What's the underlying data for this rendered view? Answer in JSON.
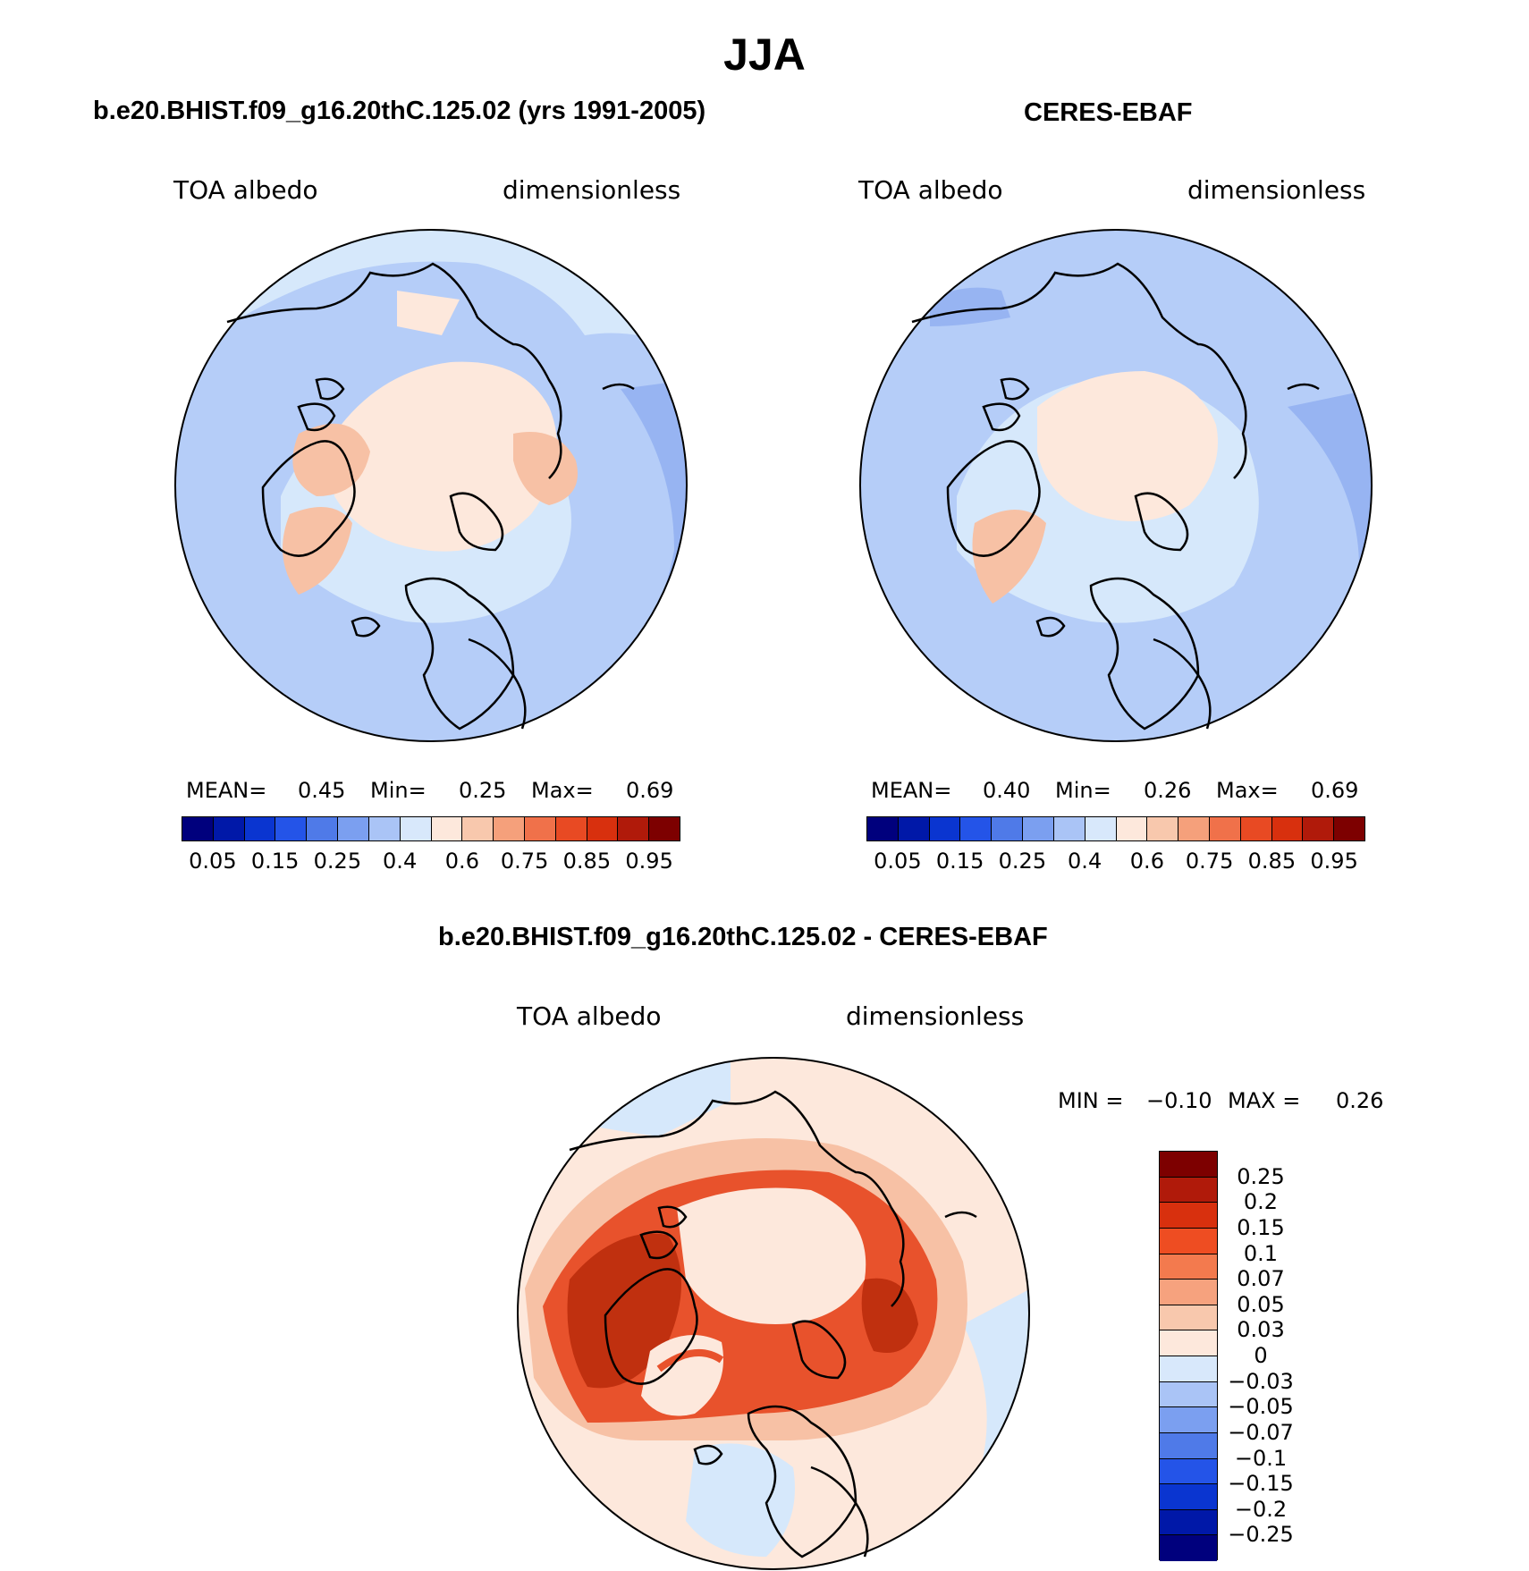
{
  "figure": {
    "title": "JJA",
    "colors": {
      "coast": "#000000",
      "light_blue": "#d6e8fb",
      "mid_blue": "#b5cdf8",
      "blue": "#97b4f2",
      "peach": "#fde8dc",
      "salmon": "#f7c1a5",
      "orange_red": "#e8522c",
      "dark_red": "#c0300f"
    }
  },
  "panels": [
    {
      "id": "model",
      "title": "b.e20.BHIST.f09_g16.20thC.125.02 (yrs 1991-2005)",
      "left_label": "TOA albedo",
      "right_label": "dimensionless",
      "stats": {
        "mean_label": "MEAN=",
        "mean": "0.45",
        "min_label": "Min=",
        "min": "0.25",
        "max_label": "Max=",
        "max": "0.69"
      }
    },
    {
      "id": "obs",
      "title": "CERES-EBAF",
      "left_label": "TOA albedo",
      "right_label": "dimensionless",
      "stats": {
        "mean_label": "MEAN=",
        "mean": "0.40",
        "min_label": "Min=",
        "min": "0.26",
        "max_label": "Max=",
        "max": "0.69"
      }
    }
  ],
  "abs_colorbar": {
    "colors": [
      "#00007d",
      "#0018a8",
      "#0a35d0",
      "#2454e8",
      "#4f7ae8",
      "#7b9ff0",
      "#aac4f6",
      "#d8e8fb",
      "#fde8dc",
      "#f8c8ad",
      "#f5a07b",
      "#f0714a",
      "#e84a23",
      "#d8300e",
      "#b01a0a",
      "#7d0000"
    ],
    "tick_labels": [
      "0.05",
      "0.15",
      "0.25",
      "0.4",
      "0.6",
      "0.75",
      "0.85",
      "0.95"
    ]
  },
  "diff_panel": {
    "title": "b.e20.BHIST.f09_g16.20thC.125.02 - CERES-EBAF",
    "left_label": "TOA albedo",
    "right_label": "dimensionless",
    "min_label": "MIN =",
    "min": "−0.10",
    "max_label": "MAX =",
    "max": "0.26"
  },
  "diff_colorbar": {
    "colors": [
      "#7d0000",
      "#b01a0a",
      "#d8300e",
      "#ee4d22",
      "#f37a4e",
      "#f6a27e",
      "#f8c8ad",
      "#fde8dc",
      "#d8e8fb",
      "#aac4f6",
      "#7b9ff0",
      "#4f7ae8",
      "#2454e8",
      "#0a35d0",
      "#0018a8",
      "#00007d"
    ],
    "tick_labels": [
      "0.25",
      "0.2",
      "0.15",
      "0.1",
      "0.07",
      "0.05",
      "0.03",
      "0",
      "−0.03",
      "−0.05",
      "−0.07",
      "−0.1",
      "−0.15",
      "−0.2",
      "−0.25"
    ]
  }
}
